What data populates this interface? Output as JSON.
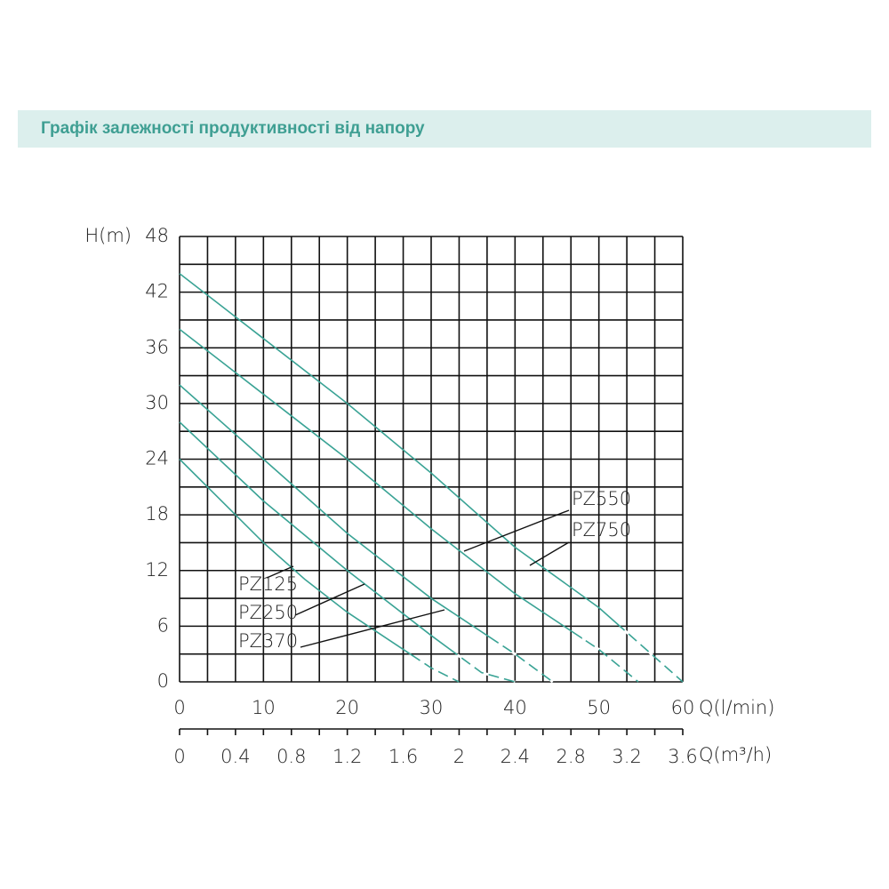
{
  "header": {
    "title": "Графік залежності продуктивності від напору"
  },
  "chart_data": {
    "type": "line",
    "ylabel": "H(m)",
    "xlabel": "Q(l/min)",
    "x2label": "Q(m³/h)",
    "xlim": [
      0,
      60
    ],
    "xticks": [
      0,
      10,
      20,
      30,
      40,
      50,
      60
    ],
    "x2lim": [
      0,
      3.6
    ],
    "x2ticks": [
      0,
      0.4,
      0.8,
      1.2,
      1.6,
      2,
      2.4,
      2.8,
      3.2,
      3.6
    ],
    "x2minor_ticks": [
      0,
      0.2,
      0.4,
      0.6,
      0.8,
      1,
      1.2,
      1.4,
      1.6,
      1.8,
      2,
      2.2,
      2.4,
      2.6,
      2.8,
      3,
      3.2,
      3.4,
      3.6
    ],
    "ylim": [
      0,
      48
    ],
    "yticks": [
      0,
      6,
      12,
      18,
      24,
      30,
      36,
      42,
      48
    ],
    "yminor_ticks": [
      0,
      3,
      6,
      9,
      12,
      15,
      18,
      21,
      24,
      27,
      30,
      33,
      36,
      39,
      42,
      45,
      48
    ],
    "grid": true,
    "color": "#3aa395",
    "series": [
      {
        "name": "PZ125",
        "x": [
          0,
          5,
          10,
          15,
          20,
          25,
          30,
          33.3
        ],
        "values": [
          24,
          19.5,
          15,
          11,
          7.5,
          4.5,
          1.5,
          0
        ],
        "dashed_from": 28
      },
      {
        "name": "PZ250",
        "x": [
          0,
          10,
          20,
          30,
          36,
          40
        ],
        "values": [
          28,
          19.5,
          12,
          5,
          1,
          0
        ],
        "dashed_from": 33
      },
      {
        "name": "PZ370",
        "x": [
          0,
          10,
          20,
          30,
          40,
          44.5
        ],
        "values": [
          32,
          24,
          16,
          9,
          3,
          0
        ],
        "dashed_from": 38
      },
      {
        "name": "PZ550",
        "x": [
          0,
          10,
          20,
          30,
          40,
          50,
          54.7
        ],
        "values": [
          38,
          31,
          24,
          16.5,
          9.5,
          3.5,
          0
        ],
        "dashed_from": 48
      },
      {
        "name": "PZ750",
        "x": [
          0,
          10,
          20,
          30,
          40,
          50,
          60
        ],
        "values": [
          44,
          37,
          30,
          22.5,
          14.5,
          8,
          0
        ],
        "dashed_from": 53
      }
    ]
  }
}
